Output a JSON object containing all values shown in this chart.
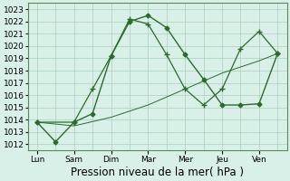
{
  "xlabel": "Pression niveau de la mer( hPa )",
  "days": [
    "Lun",
    "Sam",
    "Dim",
    "Mar",
    "Mer",
    "Jeu",
    "Ven"
  ],
  "day_positions": [
    0,
    2,
    4,
    6,
    8,
    10,
    12
  ],
  "ylim": [
    1011.5,
    1023.5
  ],
  "yticks": [
    1012,
    1013,
    1014,
    1015,
    1016,
    1017,
    1018,
    1019,
    1020,
    1021,
    1022,
    1023
  ],
  "line1": {
    "x": [
      0,
      1,
      2,
      3,
      4,
      5,
      6,
      7,
      8,
      9,
      10,
      11,
      12,
      13
    ],
    "y": [
      1013.8,
      1012.2,
      1013.8,
      1014.5,
      1019.2,
      1022.0,
      1022.5,
      1021.5,
      1019.3,
      1017.3,
      1015.2,
      1015.2,
      1015.3,
      1019.4
    ],
    "color": "#2d6a2d",
    "marker": "D",
    "markersize": 2.5,
    "linewidth": 1.0
  },
  "line2": {
    "x": [
      0,
      2,
      3,
      4,
      5,
      6,
      7,
      8,
      9,
      10,
      11,
      12,
      13
    ],
    "y": [
      1013.8,
      1013.8,
      1016.5,
      1019.2,
      1022.2,
      1021.8,
      1019.3,
      1016.5,
      1015.2,
      1016.5,
      1019.8,
      1021.2,
      1019.4
    ],
    "color": "#2d6a2d",
    "marker": "+",
    "markersize": 4,
    "linewidth": 0.9
  },
  "line3": {
    "x": [
      0,
      2,
      4,
      6,
      8,
      10,
      12,
      13
    ],
    "y": [
      1013.8,
      1013.5,
      1014.2,
      1015.2,
      1016.5,
      1017.8,
      1018.8,
      1019.4
    ],
    "color": "#2d6a2d",
    "linewidth": 0.7
  },
  "xlim": [
    -0.5,
    13.5
  ],
  "background_color": "#d8f0e8",
  "grid_color": "#aacfbb",
  "line_color": "#2d6a2d",
  "tick_fontsize": 6.5,
  "xlabel_fontsize": 8.5
}
